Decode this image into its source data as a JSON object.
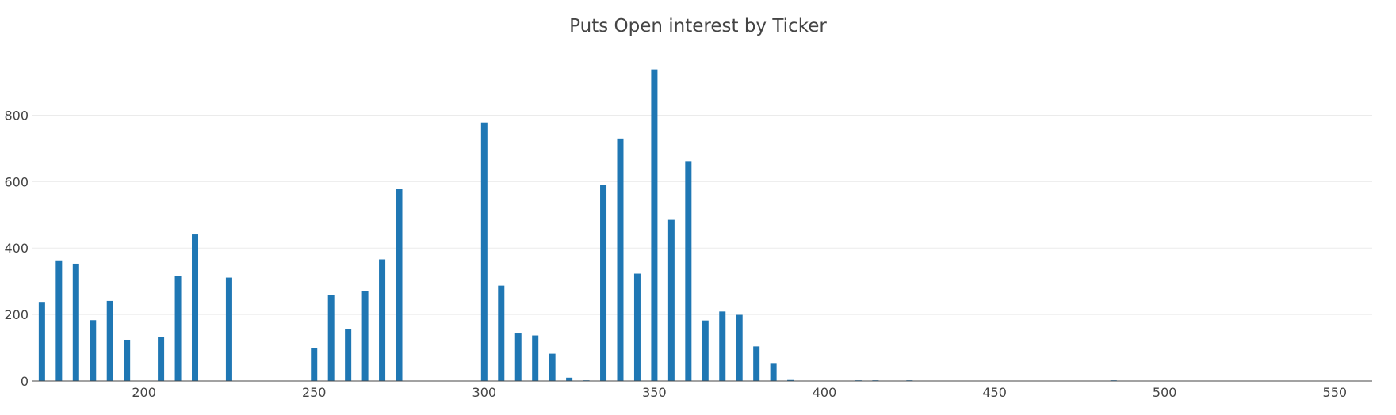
{
  "chart_data": {
    "type": "bar",
    "title": "Puts Open interest by Ticker",
    "xlabel": "",
    "ylabel": "",
    "xlim": [
      167,
      561
    ],
    "ylim": [
      0,
      980
    ],
    "x_ticks": [
      200,
      250,
      300,
      350,
      400,
      450,
      500,
      550
    ],
    "y_ticks": [
      0,
      200,
      400,
      600,
      800
    ],
    "grid": true,
    "bar_color": "#1f77b4",
    "x": [
      170,
      175,
      180,
      185,
      190,
      195,
      200,
      205,
      210,
      215,
      220,
      225,
      230,
      235,
      240,
      245,
      250,
      255,
      260,
      265,
      270,
      275,
      280,
      285,
      290,
      295,
      300,
      305,
      310,
      315,
      320,
      325,
      330,
      335,
      340,
      345,
      350,
      355,
      360,
      365,
      370,
      375,
      380,
      385,
      390,
      395,
      400,
      405,
      410,
      415,
      420,
      425,
      485
    ],
    "values": [
      238,
      363,
      353,
      183,
      241,
      124,
      0,
      133,
      316,
      441,
      0,
      311,
      0,
      0,
      0,
      0,
      98,
      258,
      155,
      271,
      366,
      577,
      0,
      0,
      0,
      0,
      778,
      287,
      143,
      137,
      82,
      10,
      2,
      589,
      730,
      323,
      938,
      485,
      662,
      182,
      209,
      199,
      104,
      54,
      3,
      1,
      1,
      1,
      2,
      2,
      0,
      2,
      2
    ]
  }
}
